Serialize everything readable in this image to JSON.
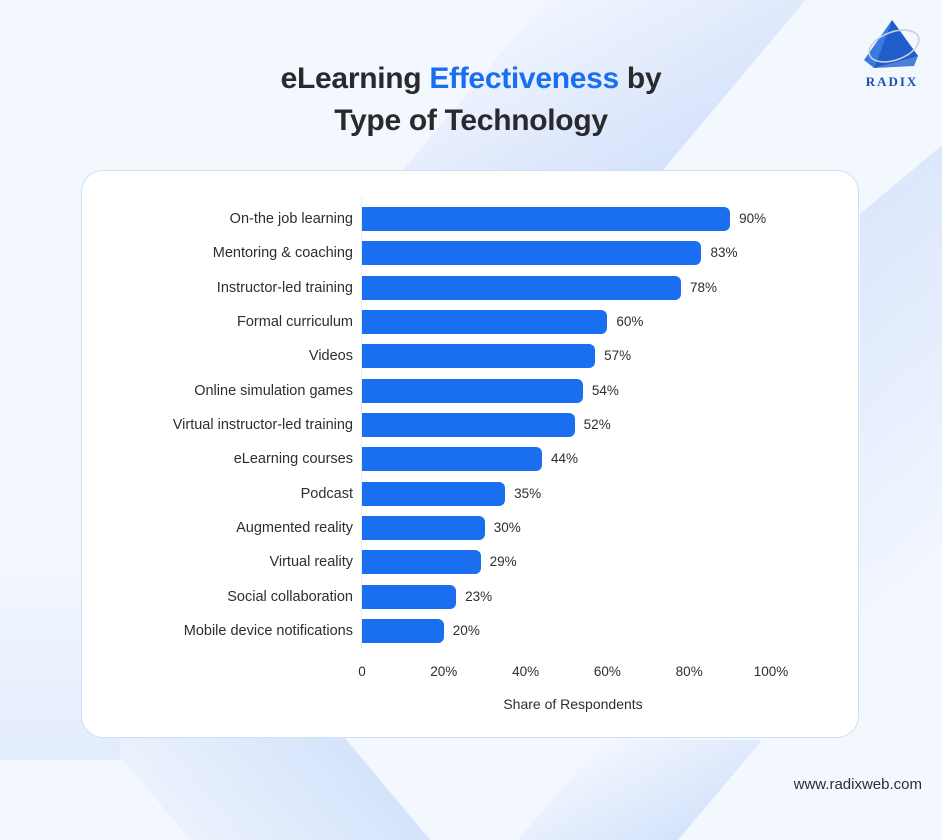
{
  "header": {
    "title_part1": "eLearning ",
    "title_accent": "Effectiveness",
    "title_part2": " by",
    "title_line2": "Type of Technology"
  },
  "logo": {
    "text": "RADIX",
    "icon": "pyramid-logo-icon"
  },
  "footer": {
    "url": "www.radixweb.com"
  },
  "colors": {
    "bar": "#1a6ef0",
    "accent": "#1a6ef0",
    "text": "#2a2a2e",
    "background": "#f3f7fe"
  },
  "chart_data": {
    "type": "bar",
    "orientation": "horizontal",
    "title": "eLearning Effectiveness by Type of Technology",
    "xlabel": "Share of Respondents",
    "ylabel": "",
    "xlim": [
      0,
      100
    ],
    "x_ticks": [
      "0",
      "20%",
      "40%",
      "60%",
      "80%",
      "100%"
    ],
    "grid": false,
    "legend": null,
    "categories": [
      "On-the job learning",
      "Mentoring & coaching",
      "Instructor-led training",
      "Formal curriculum",
      "Videos",
      "Online simulation games",
      "Virtual instructor-led training",
      "eLearning courses",
      "Podcast",
      "Augmented reality",
      "Virtual reality",
      "Social collaboration",
      "Mobile device notifications"
    ],
    "values": [
      90,
      83,
      78,
      60,
      57,
      54,
      52,
      44,
      35,
      30,
      29,
      23,
      20
    ],
    "value_labels": [
      "90%",
      "83%",
      "78%",
      "60%",
      "57%",
      "54%",
      "52%",
      "44%",
      "35%",
      "30%",
      "29%",
      "23%",
      "20%"
    ]
  }
}
